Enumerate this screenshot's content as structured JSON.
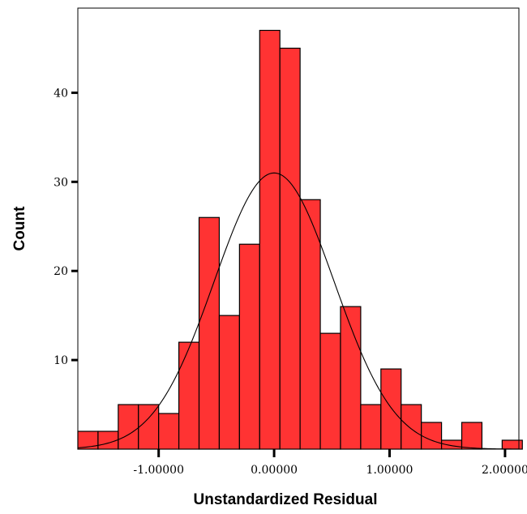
{
  "chart_data": {
    "type": "bar",
    "subtype": "histogram",
    "title": "",
    "xlabel": "Unstandardized Residual",
    "ylabel": "Count",
    "xlim": [
      -1.7,
      2.12
    ],
    "ylim": [
      0,
      49.5
    ],
    "bin_width": 0.175,
    "bin_start": -1.7,
    "bar_color": "#ff3333",
    "grid": false,
    "x_ticks": [
      {
        "value": -1.0,
        "label": "-1.00000"
      },
      {
        "value": 0.0,
        "label": "0.00000"
      },
      {
        "value": 1.0,
        "label": "1.00000"
      },
      {
        "value": 2.0,
        "label": "2.00000"
      }
    ],
    "y_ticks": [
      {
        "value": 10,
        "label": "10"
      },
      {
        "value": 20,
        "label": "20"
      },
      {
        "value": 30,
        "label": "30"
      },
      {
        "value": 40,
        "label": "40"
      }
    ],
    "counts": [
      2,
      2,
      5,
      5,
      4,
      12,
      26,
      15,
      23,
      47,
      45,
      28,
      13,
      16,
      5,
      9,
      5,
      3,
      1,
      3,
      0,
      1
    ],
    "normal_curve": {
      "mean": 0.0,
      "peak": 31,
      "sd": 0.52
    }
  }
}
